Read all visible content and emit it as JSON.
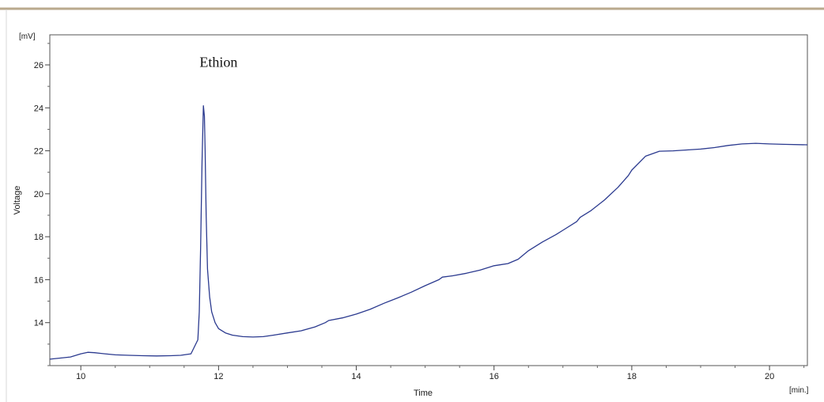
{
  "chart_data": {
    "type": "line",
    "title": "",
    "xlabel": "Time",
    "ylabel": "Voltage",
    "x_unit": "[min.]",
    "y_unit": "[mV]",
    "xlim": [
      9.55,
      20.55
    ],
    "ylim": [
      12.0,
      27.4
    ],
    "x_ticks": [
      10,
      12,
      14,
      16,
      18,
      20
    ],
    "y_ticks": [
      14,
      16,
      18,
      20,
      22,
      24,
      26
    ],
    "x_minor_step": 0.5,
    "y_minor_step": 1,
    "grid": false,
    "line_color": "#2b3a8f",
    "annotations": [
      {
        "text": "Ethion",
        "x": 12.0,
        "y": 25.9
      }
    ],
    "series": [
      {
        "x": [
          9.55,
          9.7,
          9.85,
          10.0,
          10.1,
          10.2,
          10.35,
          10.5,
          10.7,
          10.9,
          11.1,
          11.3,
          11.45,
          11.6,
          11.7,
          11.72,
          11.74,
          11.76,
          11.78,
          11.795,
          11.805,
          11.82,
          11.84,
          11.87,
          11.9,
          11.95,
          12.0,
          12.1,
          12.2,
          12.35,
          12.5,
          12.65,
          12.8,
          13.0,
          13.2,
          13.4,
          13.55,
          13.6,
          13.8,
          14.0,
          14.2,
          14.4,
          14.6,
          14.8,
          15.0,
          15.2,
          15.25,
          15.4,
          15.6,
          15.8,
          15.95,
          16.0,
          16.2,
          16.35,
          16.5,
          16.7,
          16.9,
          17.0,
          17.2,
          17.25,
          17.4,
          17.6,
          17.8,
          17.95,
          18.0,
          18.2,
          18.4,
          18.6,
          18.8,
          19.0,
          19.2,
          19.4,
          19.6,
          19.8,
          20.0,
          20.2,
          20.55
        ],
        "y": [
          12.3,
          12.35,
          12.4,
          12.55,
          12.62,
          12.6,
          12.55,
          12.5,
          12.48,
          12.46,
          12.45,
          12.46,
          12.48,
          12.55,
          13.2,
          14.5,
          17.5,
          21.5,
          24.1,
          23.6,
          22.0,
          19.0,
          16.5,
          15.2,
          14.5,
          14.0,
          13.72,
          13.52,
          13.42,
          13.35,
          13.33,
          13.35,
          13.42,
          13.52,
          13.62,
          13.8,
          14.0,
          14.1,
          14.22,
          14.4,
          14.62,
          14.9,
          15.15,
          15.42,
          15.72,
          16.0,
          16.12,
          16.18,
          16.3,
          16.45,
          16.6,
          16.65,
          16.75,
          16.95,
          17.35,
          17.75,
          18.1,
          18.3,
          18.7,
          18.9,
          19.2,
          19.7,
          20.3,
          20.85,
          21.1,
          21.75,
          21.98,
          22.0,
          22.04,
          22.08,
          22.15,
          22.25,
          22.32,
          22.35,
          22.32,
          22.3,
          22.28
        ]
      }
    ]
  }
}
